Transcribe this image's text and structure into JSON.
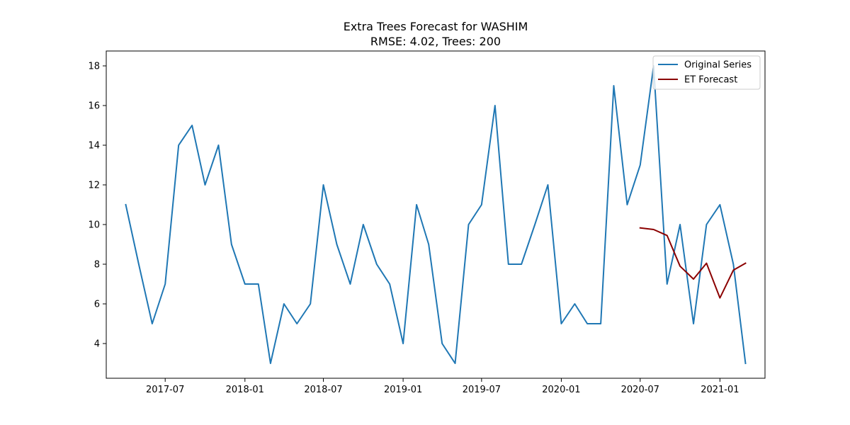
{
  "chart_data": {
    "type": "line",
    "title": "Extra Trees Forecast for WASHIM",
    "subtitle": "RMSE: 4.02, Trees: 200",
    "xlabel": "",
    "ylabel": "",
    "x_ticks": [
      {
        "date": "2017-07-01",
        "label": "2017-07"
      },
      {
        "date": "2018-01-01",
        "label": "2018-01"
      },
      {
        "date": "2018-07-01",
        "label": "2018-07"
      },
      {
        "date": "2019-01-01",
        "label": "2019-01"
      },
      {
        "date": "2019-07-01",
        "label": "2019-07"
      },
      {
        "date": "2020-01-01",
        "label": "2020-01"
      },
      {
        "date": "2020-07-01",
        "label": "2020-07"
      },
      {
        "date": "2021-01-01",
        "label": "2021-01"
      }
    ],
    "y_ticks": [
      4,
      6,
      8,
      10,
      12,
      14,
      16,
      18
    ],
    "xlim": [
      "2017-02-15",
      "2021-04-15"
    ],
    "ylim": [
      2.25,
      18.75
    ],
    "grid": false,
    "legend_position": "top-right",
    "series": [
      {
        "name": "Original Series",
        "color": "#1f77b4",
        "points": [
          [
            "2017-04-01",
            11
          ],
          [
            "2017-05-01",
            8
          ],
          [
            "2017-06-01",
            5
          ],
          [
            "2017-07-01",
            7
          ],
          [
            "2017-08-01",
            14
          ],
          [
            "2017-09-01",
            15
          ],
          [
            "2017-10-01",
            12
          ],
          [
            "2017-11-01",
            14
          ],
          [
            "2017-12-01",
            9
          ],
          [
            "2018-01-01",
            7
          ],
          [
            "2018-02-01",
            7
          ],
          [
            "2018-03-01",
            3
          ],
          [
            "2018-04-01",
            6
          ],
          [
            "2018-05-01",
            5
          ],
          [
            "2018-06-01",
            6
          ],
          [
            "2018-07-01",
            12
          ],
          [
            "2018-08-01",
            9
          ],
          [
            "2018-09-01",
            7
          ],
          [
            "2018-10-01",
            10
          ],
          [
            "2018-11-01",
            8
          ],
          [
            "2018-12-01",
            7
          ],
          [
            "2019-01-01",
            4
          ],
          [
            "2019-02-01",
            11
          ],
          [
            "2019-03-01",
            9
          ],
          [
            "2019-04-01",
            4
          ],
          [
            "2019-05-01",
            3
          ],
          [
            "2019-06-01",
            10
          ],
          [
            "2019-07-01",
            11
          ],
          [
            "2019-08-01",
            16
          ],
          [
            "2019-09-01",
            8
          ],
          [
            "2019-10-01",
            8
          ],
          [
            "2019-11-01",
            10
          ],
          [
            "2019-12-01",
            12
          ],
          [
            "2020-01-01",
            5
          ],
          [
            "2020-02-01",
            6
          ],
          [
            "2020-03-01",
            5
          ],
          [
            "2020-04-01",
            5
          ],
          [
            "2020-05-01",
            17
          ],
          [
            "2020-06-01",
            11
          ],
          [
            "2020-07-01",
            13
          ],
          [
            "2020-08-01",
            18
          ],
          [
            "2020-09-01",
            7
          ],
          [
            "2020-10-01",
            10
          ],
          [
            "2020-11-01",
            5
          ],
          [
            "2020-12-01",
            10
          ],
          [
            "2021-01-01",
            11
          ],
          [
            "2021-02-01",
            8
          ],
          [
            "2021-03-01",
            3
          ]
        ]
      },
      {
        "name": "ET Forecast",
        "color": "#8b0000",
        "points": [
          [
            "2020-07-01",
            9.83
          ],
          [
            "2020-08-01",
            9.75
          ],
          [
            "2020-09-01",
            9.45
          ],
          [
            "2020-10-01",
            7.9
          ],
          [
            "2020-11-01",
            7.25
          ],
          [
            "2020-12-01",
            8.05
          ],
          [
            "2021-01-01",
            6.3
          ],
          [
            "2021-02-01",
            7.7
          ],
          [
            "2021-03-01",
            8.05
          ]
        ]
      }
    ]
  }
}
